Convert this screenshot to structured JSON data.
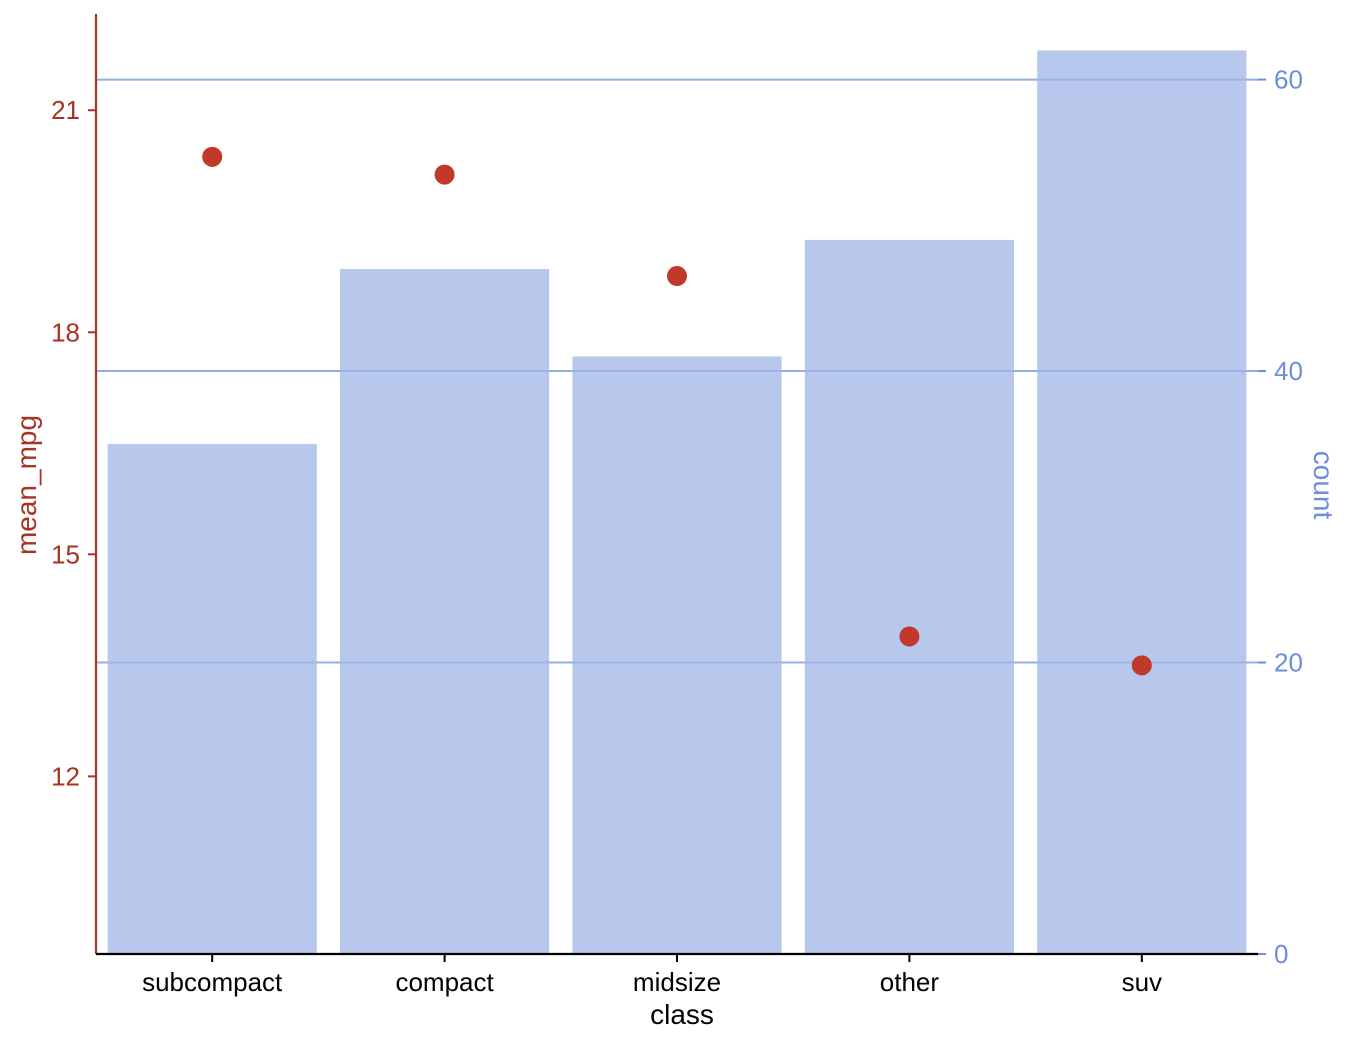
{
  "colors": {
    "bar": "#B7C8EC",
    "point": "#C0392B",
    "left_axis": "#A93226",
    "right_axis": "#6C8EDB",
    "gridline": "#A9BFEB",
    "x_axis": "#000000"
  },
  "chart_data": {
    "type": "bar",
    "categories": [
      "subcompact",
      "compact",
      "midsize",
      "other",
      "suv"
    ],
    "series": [
      {
        "type": "bar",
        "axis": "right",
        "values": [
          35,
          47,
          41,
          49,
          62
        ]
      },
      {
        "type": "scatter",
        "axis": "left",
        "values": [
          20.37,
          20.13,
          18.76,
          13.89,
          13.5
        ]
      }
    ],
    "xlabel": "class",
    "ylabel_left": "mean_mpg",
    "ylabel_right": "count",
    "ylim_left": [
      9.6,
      22.3
    ],
    "ylim_right": [
      0,
      64.5
    ],
    "yticks_left": [
      12,
      15,
      18,
      21
    ],
    "yticks_right": [
      0,
      20,
      40,
      60
    ],
    "grid": "horizontal lines at right-axis ticks"
  }
}
